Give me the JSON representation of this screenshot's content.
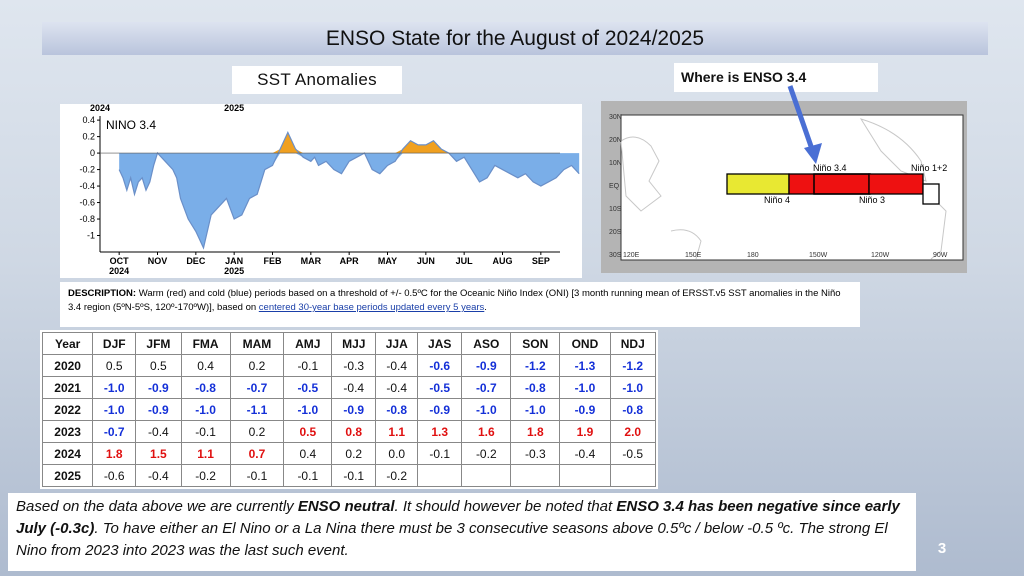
{
  "title": "ENSO State for the August of 2024/2025",
  "sst_label": "SST Anomalies",
  "chart_data": {
    "type": "area",
    "title": "NINO 3.4",
    "year_labels": [
      "2024",
      "2025"
    ],
    "x_ticks": [
      "OCT",
      "NOV",
      "DEC",
      "JAN",
      "FEB",
      "MAR",
      "APR",
      "MAY",
      "JUN",
      "JUL",
      "AUG",
      "SEP"
    ],
    "x_year_ticks": [
      "2024",
      "2025"
    ],
    "y_ticks": [
      "0.4",
      "0.2",
      "0",
      "-0.2",
      "-0.4",
      "-0.6",
      "-0.8",
      "-1"
    ],
    "ylim": [
      -1.2,
      0.45
    ],
    "x": [
      0,
      0.1,
      0.2,
      0.3,
      0.4,
      0.5,
      0.6,
      0.7,
      0.8,
      0.9,
      1.0,
      1.2,
      1.4,
      1.5,
      1.6,
      1.8,
      2.0,
      2.2,
      2.4,
      2.6,
      2.8,
      3.0,
      3.2,
      3.4,
      3.6,
      3.8,
      4.0,
      4.2,
      4.4,
      4.6,
      4.8,
      5.0,
      5.1,
      5.2,
      5.4,
      5.6,
      5.8,
      6.0,
      6.2,
      6.4,
      6.6,
      6.8,
      7.0,
      7.2,
      7.4,
      7.6,
      7.8,
      8.0,
      8.2,
      8.4,
      8.6,
      8.8,
      9.0,
      9.2,
      9.4,
      9.6,
      9.8,
      10.0,
      10.2,
      10.4,
      10.6,
      10.8,
      11.0,
      11.2,
      11.4,
      11.6,
      11.8,
      12.0
    ],
    "values": [
      -0.2,
      -0.3,
      -0.45,
      -0.3,
      -0.5,
      -0.35,
      -0.3,
      -0.45,
      -0.35,
      -0.15,
      0.0,
      -0.1,
      -0.2,
      -0.3,
      -0.55,
      -0.8,
      -0.95,
      -1.15,
      -0.75,
      -0.65,
      -0.55,
      -0.8,
      -0.75,
      -0.55,
      -0.5,
      -0.2,
      -0.15,
      0.05,
      0.25,
      0.05,
      -0.05,
      -0.1,
      -0.05,
      -0.15,
      -0.1,
      -0.2,
      -0.25,
      -0.1,
      -0.05,
      0.0,
      -0.2,
      -0.25,
      -0.15,
      -0.1,
      0.05,
      0.15,
      0.1,
      0.1,
      0.15,
      0.05,
      0.0,
      -0.1,
      -0.05,
      -0.2,
      -0.35,
      -0.3,
      -0.15,
      -0.2,
      -0.25,
      -0.3,
      -0.25,
      -0.35,
      -0.4,
      -0.35,
      -0.3,
      -0.2,
      -0.15,
      -0.25
    ],
    "colors": {
      "positive": "#f0a020",
      "negative": "#7aaee8",
      "line": "#6a8fc8"
    },
    "grid": false
  },
  "description": {
    "label": "DESCRIPTION:",
    "text": "Warm (red) and cold (blue) periods based on a threshold of +/- 0.5ºC for the Oceanic Niño Index (ONI) [3 month running mean of ERSST.v5 SST anomalies in the Niño 3.4 region (5ºN-5ºS, 120º-170ºW)], based on",
    "link": "centered 30-year base periods updated every 5 years",
    "end": "."
  },
  "where_label": "Where is ENSO 3.4",
  "map": {
    "lat_labels": [
      "30N",
      "20N",
      "10N",
      "EQ",
      "10S",
      "20S",
      "30S"
    ],
    "lon_labels": [
      "120E",
      "150E",
      "180",
      "150W",
      "120W",
      "90W"
    ],
    "regions": [
      {
        "name": "Niño 4",
        "color": "#e8e832"
      },
      {
        "name": "Niño 3.4",
        "color": "#ffffff"
      },
      {
        "name": "Niño 3",
        "color": "#ee1111"
      },
      {
        "name": "Niño 1+2",
        "color": "#ffffff"
      }
    ],
    "arrow_color": "#4a6fd4"
  },
  "table": {
    "headers": [
      "Year",
      "DJF",
      "JFM",
      "FMA",
      "MAM",
      "AMJ",
      "MJJ",
      "JJA",
      "JAS",
      "ASO",
      "SON",
      "OND",
      "NDJ"
    ],
    "rows": [
      {
        "year": "2020",
        "cells": [
          [
            "0.5",
            "n"
          ],
          [
            "0.5",
            "n"
          ],
          [
            "0.4",
            "n"
          ],
          [
            "0.2",
            "n"
          ],
          [
            "-0.1",
            "n"
          ],
          [
            "-0.3",
            "n"
          ],
          [
            "-0.4",
            "n"
          ],
          [
            "-0.6",
            "c"
          ],
          [
            "-0.9",
            "c"
          ],
          [
            "-1.2",
            "c"
          ],
          [
            "-1.3",
            "c"
          ],
          [
            "-1.2",
            "c"
          ]
        ]
      },
      {
        "year": "2021",
        "cells": [
          [
            "-1.0",
            "c"
          ],
          [
            "-0.9",
            "c"
          ],
          [
            "-0.8",
            "c"
          ],
          [
            "-0.7",
            "c"
          ],
          [
            "-0.5",
            "c"
          ],
          [
            "-0.4",
            "n"
          ],
          [
            "-0.4",
            "n"
          ],
          [
            "-0.5",
            "c"
          ],
          [
            "-0.7",
            "c"
          ],
          [
            "-0.8",
            "c"
          ],
          [
            "-1.0",
            "c"
          ],
          [
            "-1.0",
            "c"
          ]
        ]
      },
      {
        "year": "2022",
        "cells": [
          [
            "-1.0",
            "c"
          ],
          [
            "-0.9",
            "c"
          ],
          [
            "-1.0",
            "c"
          ],
          [
            "-1.1",
            "c"
          ],
          [
            "-1.0",
            "c"
          ],
          [
            "-0.9",
            "c"
          ],
          [
            "-0.8",
            "c"
          ],
          [
            "-0.9",
            "c"
          ],
          [
            "-1.0",
            "c"
          ],
          [
            "-1.0",
            "c"
          ],
          [
            "-0.9",
            "c"
          ],
          [
            "-0.8",
            "c"
          ]
        ]
      },
      {
        "year": "2023",
        "cells": [
          [
            "-0.7",
            "c"
          ],
          [
            "-0.4",
            "n"
          ],
          [
            "-0.1",
            "n"
          ],
          [
            "0.2",
            "n"
          ],
          [
            "0.5",
            "w"
          ],
          [
            "0.8",
            "w"
          ],
          [
            "1.1",
            "w"
          ],
          [
            "1.3",
            "w"
          ],
          [
            "1.6",
            "w"
          ],
          [
            "1.8",
            "w"
          ],
          [
            "1.9",
            "w"
          ],
          [
            "2.0",
            "w"
          ]
        ]
      },
      {
        "year": "2024",
        "cells": [
          [
            "1.8",
            "w"
          ],
          [
            "1.5",
            "w"
          ],
          [
            "1.1",
            "w"
          ],
          [
            "0.7",
            "w"
          ],
          [
            "0.4",
            "n"
          ],
          [
            "0.2",
            "n"
          ],
          [
            "0.0",
            "n"
          ],
          [
            "-0.1",
            "n"
          ],
          [
            "-0.2",
            "n"
          ],
          [
            "-0.3",
            "n"
          ],
          [
            "-0.4",
            "n"
          ],
          [
            "-0.5",
            "n"
          ]
        ]
      },
      {
        "year": "2025",
        "cells": [
          [
            "-0.6",
            "n"
          ],
          [
            "-0.4",
            "n"
          ],
          [
            "-0.2",
            "n"
          ],
          [
            "-0.1",
            "n"
          ],
          [
            "-0.1",
            "n"
          ],
          [
            "-0.1",
            "n"
          ],
          [
            "-0.2",
            "n"
          ],
          [
            "",
            ""
          ],
          [
            "",
            ""
          ],
          [
            "",
            ""
          ],
          [
            "",
            ""
          ],
          [
            "",
            ""
          ]
        ]
      }
    ]
  },
  "note": {
    "p1": "Based on the data above we are currently ",
    "b1": "ENSO neutral",
    "p2": ". It should however be noted that ",
    "b2": "ENSO 3.4 has been negative since early July (-0.3c)",
    "p3": ". To have either an El Nino or a La Nina there must be 3 consecutive seasons above 0.5ºc / below -0.5 ºc.  The strong El Nino from 2023 into 2023 was the last such event."
  },
  "page_number": "3"
}
